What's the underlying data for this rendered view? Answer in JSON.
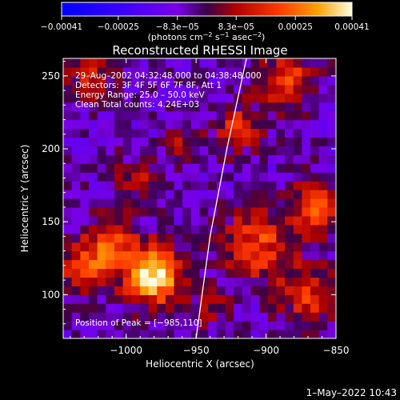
{
  "chart_data": {
    "type": "heatmap",
    "title": "Reconstructed RHESSI Image",
    "xlabel": "Heliocentric X (arcsec)",
    "ylabel": "Heliocentric Y (arcsec)",
    "xlim": [
      -1045,
      -850
    ],
    "ylim": [
      70,
      262
    ],
    "x_ticks": [
      -1000,
      -950,
      -900,
      -850
    ],
    "x_tick_labels": [
      "−1000",
      "−950",
      "−900",
      "−850"
    ],
    "y_ticks": [
      100,
      150,
      200,
      250
    ],
    "y_tick_labels": [
      "100",
      "150",
      "200",
      "250"
    ],
    "colorbar": {
      "min": -0.00041,
      "max": 0.00041,
      "ticks": [
        -0.00041,
        -0.00025,
        -8.3e-05,
        8.3e-05,
        0.00025,
        0.00041
      ],
      "tick_labels": [
        "−0.00041",
        "−0.00025",
        "−8.3e−05",
        "8.3e−05",
        "0.00025",
        "0.00041"
      ],
      "unit_label_main": "(photons cm",
      "unit_sup1": "−2",
      "unit_label_mid": " s",
      "unit_sup2": "−1",
      "unit_label_end": " asec",
      "unit_sup3": "−2",
      "unit_label_close": ")"
    },
    "annotations": [
      "29–Aug–2002 04:32:48.000 to 04:38:48.000",
      "Detectors: 3F 4F 5F 6F 7F 8F, Att 1",
      "Energy Range: 25.0 – 50.0 keV",
      "Clean     Total counts: 4.24E+03"
    ],
    "peak_label": "Position of Peak = [−985,110]",
    "peak": {
      "x": -985,
      "y": 110
    },
    "limb_curve": [
      [
        -950,
        70
      ],
      [
        -940,
        140
      ],
      [
        -928,
        200
      ],
      [
        -914,
        262
      ]
    ],
    "grid": 32,
    "sources": [
      {
        "x": -980,
        "y": 113,
        "amp": 1.0,
        "r": 14
      },
      {
        "x": -1010,
        "y": 135,
        "amp": 0.55,
        "r": 14
      },
      {
        "x": -905,
        "y": 135,
        "amp": 0.55,
        "r": 18
      },
      {
        "x": -865,
        "y": 160,
        "amp": 0.6,
        "r": 12
      },
      {
        "x": -885,
        "y": 248,
        "amp": 0.55,
        "r": 14
      },
      {
        "x": -920,
        "y": 215,
        "amp": 0.45,
        "r": 12
      },
      {
        "x": -960,
        "y": 205,
        "amp": 0.3,
        "r": 10
      },
      {
        "x": -1025,
        "y": 250,
        "amp": 0.4,
        "r": 12
      },
      {
        "x": -1030,
        "y": 118,
        "amp": 0.5,
        "r": 12
      },
      {
        "x": -870,
        "y": 100,
        "amp": 0.5,
        "r": 14
      },
      {
        "x": -940,
        "y": 90,
        "amp": 0.25,
        "r": 10
      },
      {
        "x": -990,
        "y": 180,
        "amp": 0.3,
        "r": 12
      }
    ]
  },
  "timestamp": "1–May–2022 10:43"
}
